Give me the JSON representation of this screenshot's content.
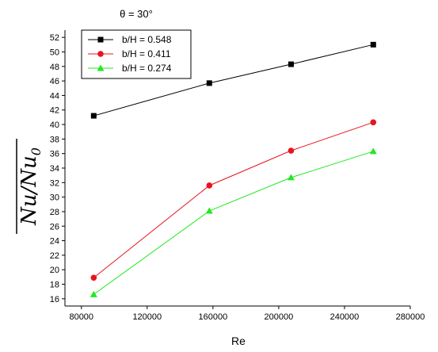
{
  "chart_data": {
    "type": "line",
    "title": "θ = 30°",
    "xlabel": "Re",
    "ylabel": "Nu/Nu",
    "ylabel_subscript": "0",
    "xlim": [
      70000,
      280000
    ],
    "ylim": [
      15,
      53
    ],
    "xticks": [
      80000,
      120000,
      160000,
      200000,
      240000,
      280000
    ],
    "yticks": [
      16,
      18,
      20,
      22,
      24,
      26,
      28,
      30,
      32,
      34,
      36,
      38,
      40,
      42,
      44,
      46,
      48,
      50,
      52
    ],
    "grid": false,
    "legend_position": "top-left",
    "x": [
      87500,
      157800,
      207500,
      257500
    ],
    "series": [
      {
        "name": "b/H = 0.548",
        "values": [
          41.2,
          45.7,
          48.3,
          51.0
        ],
        "color": "#000000",
        "marker": "square"
      },
      {
        "name": "b/H = 0.411",
        "values": [
          18.9,
          31.6,
          36.4,
          40.3
        ],
        "color": "#e8141d",
        "marker": "circle"
      },
      {
        "name": "b/H = 0.274",
        "values": [
          16.6,
          28.1,
          32.7,
          36.3
        ],
        "color": "#22e822",
        "marker": "triangle"
      }
    ]
  }
}
